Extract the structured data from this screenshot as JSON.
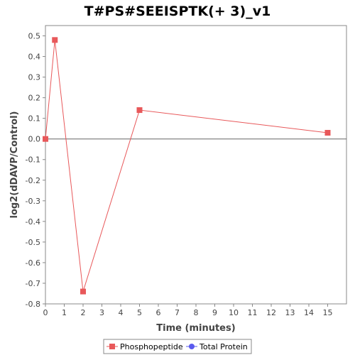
{
  "chart_data": {
    "type": "line",
    "title": "T#PS#SEEISPTK(+ 3)_v1",
    "xlabel": "Time (minutes)",
    "ylabel": "log2(dDAVP/Control)",
    "xlim": [
      0,
      16
    ],
    "ylim": [
      -0.8,
      0.55
    ],
    "x_ticks": [
      0,
      1,
      2,
      3,
      4,
      5,
      6,
      7,
      8,
      9,
      10,
      11,
      12,
      13,
      14,
      15
    ],
    "y_ticks": [
      -0.8,
      -0.7,
      -0.6,
      -0.5,
      -0.4,
      -0.3,
      -0.2,
      -0.1,
      0.0,
      0.1,
      0.2,
      0.3,
      0.4,
      0.5
    ],
    "x_tick_labels": [
      "0",
      "1",
      "2",
      "3",
      "4",
      "5",
      "6",
      "7",
      "8",
      "9",
      "10",
      "11",
      "12",
      "13",
      "14",
      "15"
    ],
    "y_tick_labels": [
      "-0.8",
      "-0.7",
      "-0.6",
      "-0.5",
      "-0.4",
      "-0.3",
      "-0.2",
      "-0.1",
      "0.0",
      "0.1",
      "0.2",
      "0.3",
      "0.4",
      "0.5"
    ],
    "grid": false,
    "zero_line": true,
    "legend_position": "bottom",
    "series": [
      {
        "name": "Phosphopeptide",
        "color": "#e8585a",
        "marker": "square",
        "points": [
          {
            "x": 0,
            "y": 0.0
          },
          {
            "x": 0.5,
            "y": 0.48
          },
          {
            "x": 2,
            "y": -0.74
          },
          {
            "x": 5,
            "y": 0.14
          },
          {
            "x": 15,
            "y": 0.03
          }
        ]
      },
      {
        "name": "Total Protein",
        "color": "#5a5aee",
        "marker": "circle",
        "points": []
      }
    ]
  }
}
